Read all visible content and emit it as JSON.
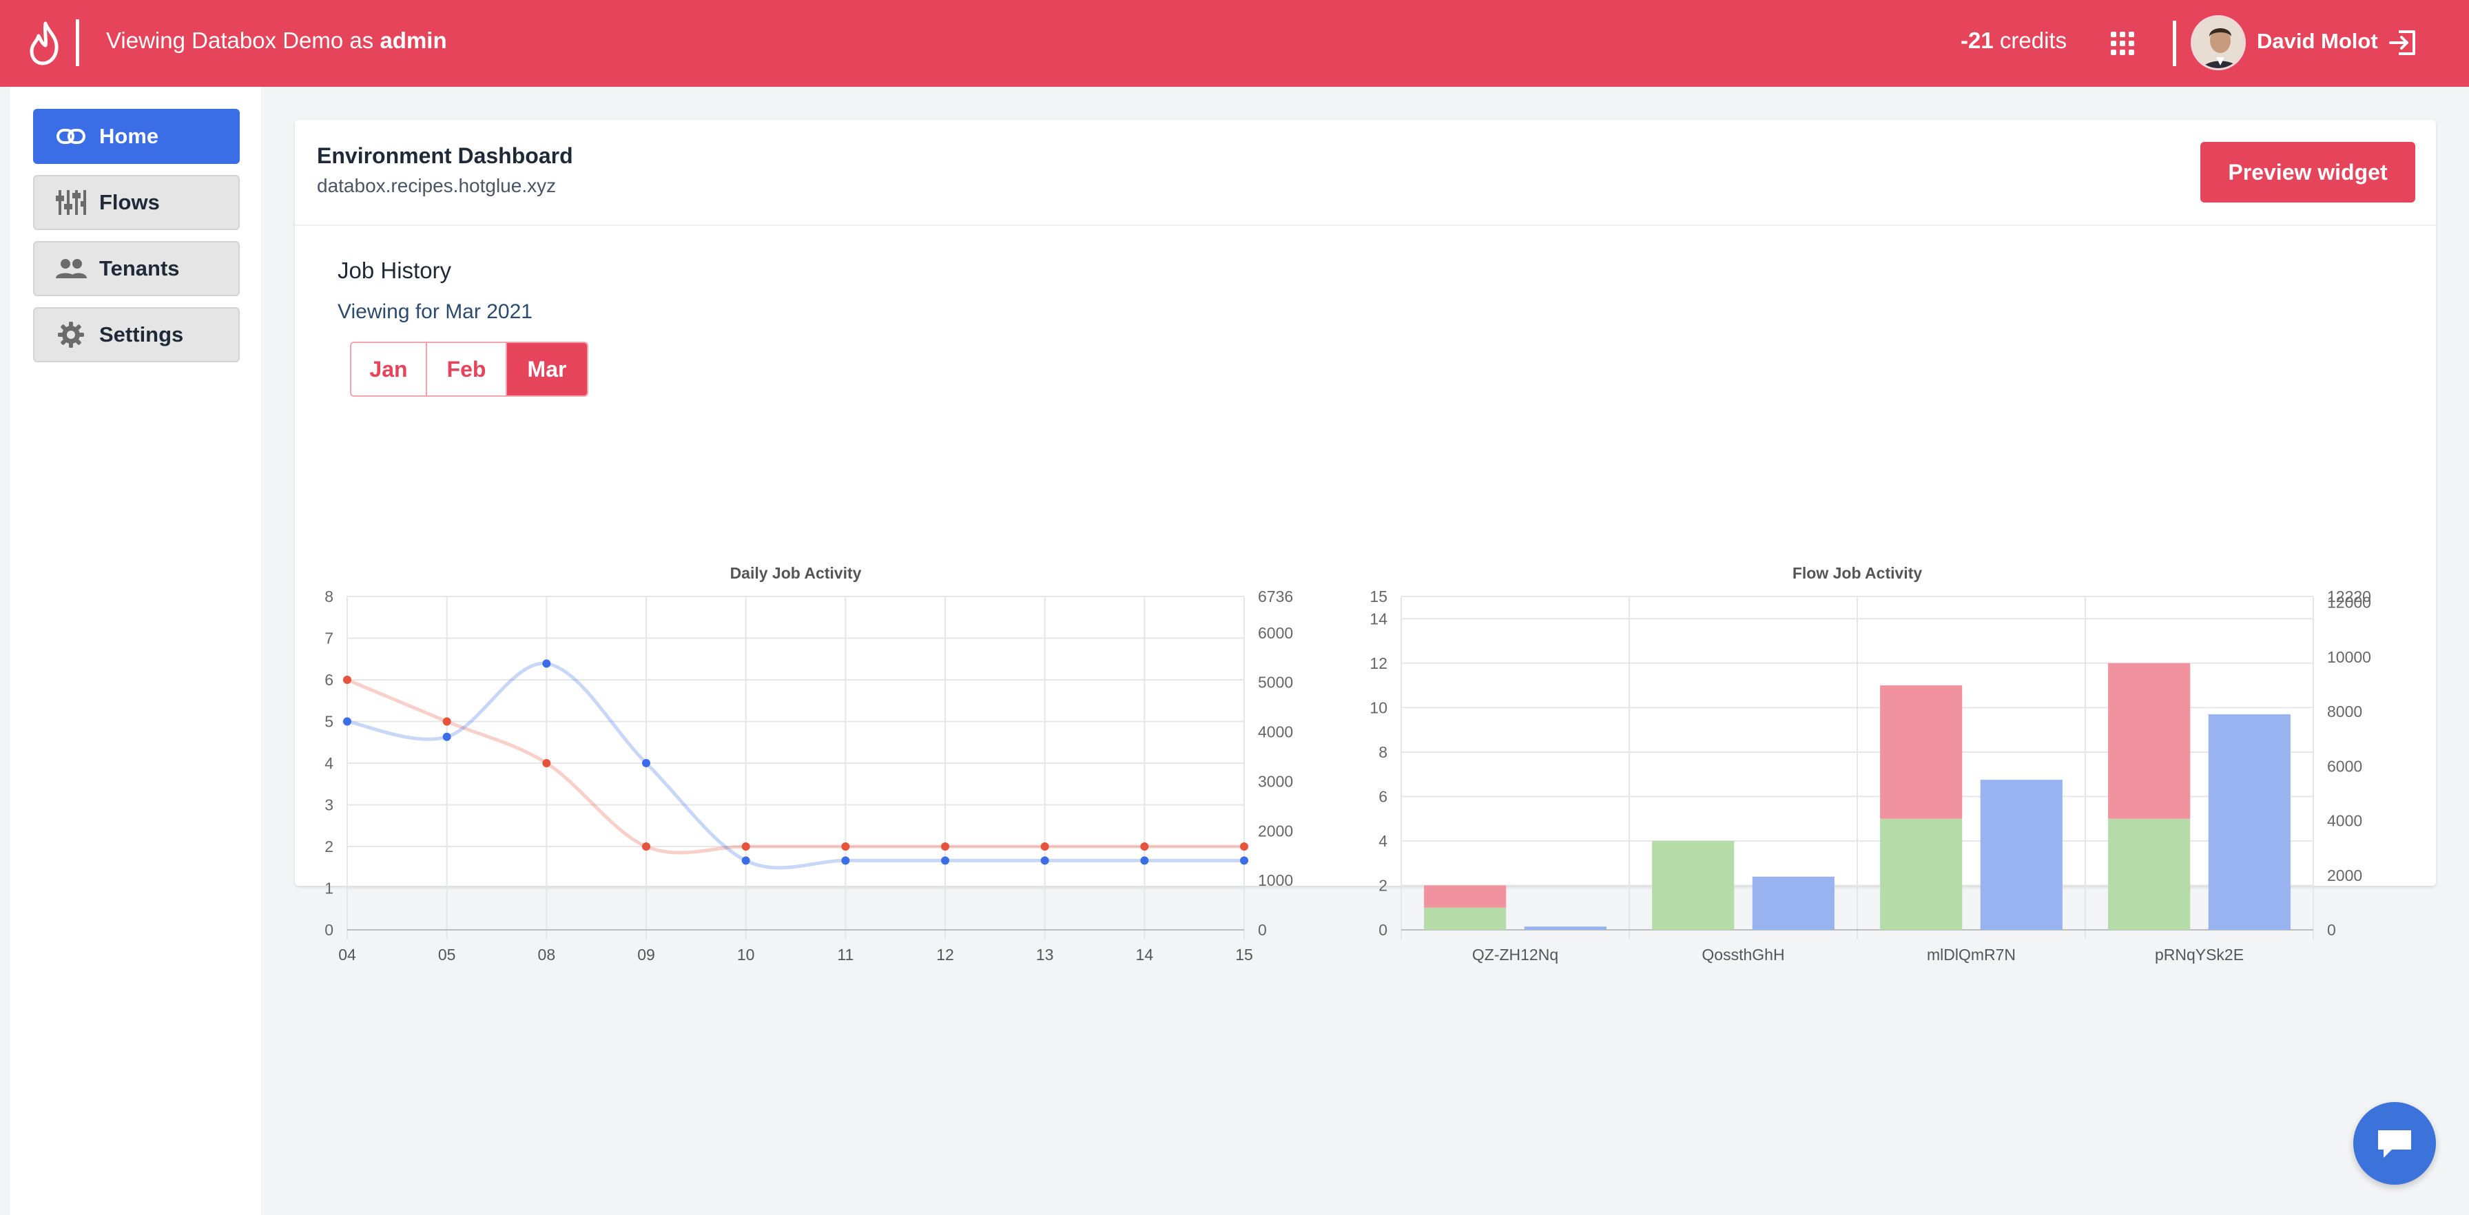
{
  "topbar": {
    "viewing_prefix": "Viewing Databox Demo as",
    "viewing_user": "admin",
    "credits_value": "-21",
    "credits_label": "credits",
    "user_name": "David Molot",
    "bg_color": "#e5445a"
  },
  "sidebar": {
    "items": [
      {
        "label": "Home",
        "icon": "link-icon",
        "active": true
      },
      {
        "label": "Flows",
        "icon": "sliders-icon",
        "active": false
      },
      {
        "label": "Tenants",
        "icon": "users-icon",
        "active": false
      },
      {
        "label": "Settings",
        "icon": "gear-icon",
        "active": false
      }
    ]
  },
  "card": {
    "title": "Environment Dashboard",
    "subtitle": "databox.recipes.hotglue.xyz",
    "preview_label": "Preview widget"
  },
  "history": {
    "title": "Job History",
    "viewing_for": "Viewing for Mar 2021",
    "months": [
      "Jan",
      "Feb",
      "Mar"
    ],
    "active_month": "Mar"
  },
  "chart_data": [
    {
      "type": "line",
      "title": "Daily Job Activity",
      "categories": [
        "04",
        "05",
        "08",
        "09",
        "10",
        "11",
        "12",
        "13",
        "14",
        "15"
      ],
      "y_left": {
        "min": 0,
        "max": 8,
        "ticks": [
          "0",
          "1",
          "2",
          "3",
          "4",
          "5",
          "6",
          "7",
          "8"
        ]
      },
      "y_right": {
        "min": 0,
        "max": 6736,
        "ticks": [
          "0",
          "1000",
          "2000",
          "3000",
          "4000",
          "5000",
          "6000",
          "6736"
        ]
      },
      "series": [
        {
          "color": "#e5533c",
          "axis": "left",
          "values": [
            6,
            5,
            4,
            2,
            2,
            2,
            2,
            2,
            2,
            2
          ]
        },
        {
          "color": "#3b6ee6",
          "axis": "right",
          "values": [
            4210,
            3900,
            5380,
            3370,
            1400,
            1400,
            1400,
            1400,
            1400,
            1400
          ]
        }
      ],
      "grid": true
    },
    {
      "type": "bar",
      "title": "Flow Job Activity",
      "categories": [
        "QZ-ZH12Nq",
        "QossthGhH",
        "mlDlQmR7N",
        "pRNqYSk2E"
      ],
      "y_left": {
        "min": 0,
        "max": 15,
        "ticks": [
          "0",
          "2",
          "4",
          "6",
          "8",
          "10",
          "12",
          "14",
          "15"
        ]
      },
      "y_right": {
        "min": 0,
        "max": 12220,
        "ticks": [
          "0",
          "2000",
          "4000",
          "6000",
          "8000",
          "10000",
          "12000",
          "12220"
        ]
      },
      "series": [
        {
          "color": "#b5dca8",
          "stack": "jobs",
          "axis": "left",
          "values": [
            1,
            4,
            5,
            5
          ]
        },
        {
          "color": "#f0939e",
          "stack": "jobs",
          "axis": "left",
          "values": [
            1,
            0,
            6,
            7
          ]
        },
        {
          "color": "#98b3f0",
          "stack": "rows",
          "axis": "right",
          "values": [
            120,
            1950,
            5500,
            7900
          ]
        }
      ],
      "grid": true
    }
  ]
}
